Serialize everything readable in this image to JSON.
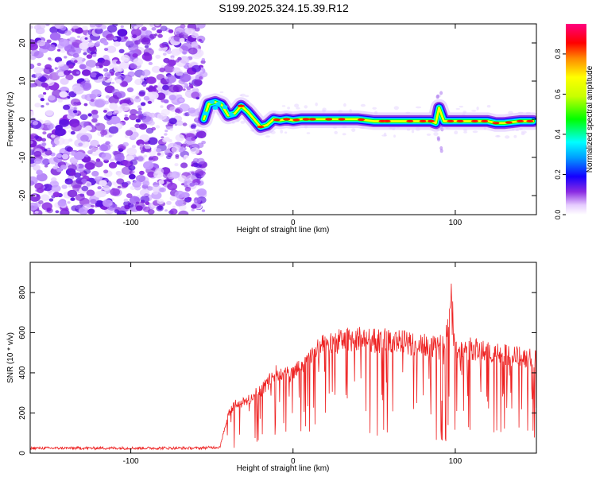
{
  "title": "S199.2025.324.15.39.R12",
  "colors": {
    "snr_line": "#ee2222",
    "spec_noise": "#8a2be2"
  },
  "chart_data": [
    {
      "type": "heatmap",
      "name": "spectrogram",
      "xlabel": "Height of straight line (km)",
      "ylabel": "Frequency (Hz)",
      "xlim": [
        -162,
        150
      ],
      "ylim": [
        -25,
        25
      ],
      "xticks": [
        -100,
        0,
        100
      ],
      "yticks": [
        -20,
        -10,
        0,
        10,
        20
      ],
      "ridge": {
        "x": [
          -55,
          -52,
          -48,
          -44,
          -40,
          -36,
          -32,
          -28,
          -24,
          -20,
          -16,
          -12,
          -8,
          -4,
          0,
          5,
          10,
          20,
          30,
          40,
          50,
          60,
          70,
          80,
          85,
          88,
          90,
          93,
          95,
          100,
          110,
          120,
          125,
          130,
          140,
          148
        ],
        "y": [
          0,
          4,
          4.5,
          3.8,
          1,
          1.5,
          3.5,
          2,
          0,
          -2,
          -1.5,
          0,
          -0.3,
          0,
          -0.3,
          0,
          0,
          0,
          0,
          0,
          -0.5,
          -0.5,
          -0.5,
          -0.5,
          -0.5,
          -1,
          3,
          -0.5,
          -0.5,
          -0.5,
          -0.5,
          -0.5,
          -1,
          -1,
          -0.5,
          -0.5
        ]
      },
      "colorbar": {
        "label": "Normalized spectral amplitude",
        "ticks": [
          0.0,
          0.2,
          0.4,
          0.6,
          0.8
        ],
        "range": [
          0,
          0.95
        ]
      }
    },
    {
      "type": "line",
      "name": "snr",
      "xlabel": "Height of straight line (km)",
      "ylabel": "SNR (10 * v/v)",
      "xlim": [
        -162,
        150
      ],
      "ylim": [
        0,
        950
      ],
      "xticks": [
        -100,
        0,
        100
      ],
      "yticks": [
        0,
        200,
        400,
        600,
        800
      ],
      "series": [
        {
          "name": "SNR",
          "envelope_x": [
            -162,
            -60,
            -45,
            -40,
            -35,
            -30,
            -20,
            -10,
            0,
            10,
            20,
            30,
            40,
            50,
            60,
            70,
            80,
            90,
            95,
            98,
            100,
            110,
            120,
            130,
            140,
            150
          ],
          "envelope_y": [
            25,
            25,
            30,
            200,
            250,
            250,
            310,
            400,
            390,
            480,
            540,
            560,
            570,
            560,
            560,
            550,
            540,
            520,
            600,
            820,
            520,
            520,
            500,
            490,
            480,
            470
          ]
        }
      ]
    }
  ]
}
